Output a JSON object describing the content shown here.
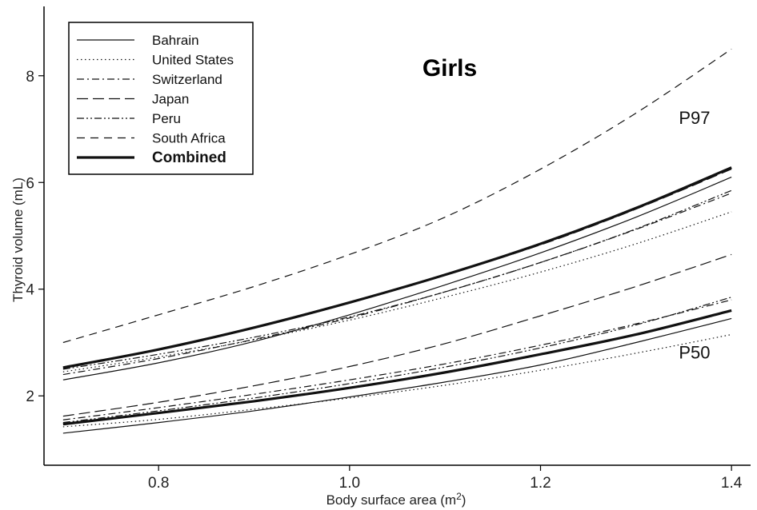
{
  "chart_data": {
    "type": "line",
    "title": "Girls",
    "xlabel": "Body surface area (m",
    "xlabel_sup": "2",
    "xlabel_suffix": ")",
    "ylabel": "Thyroid volume (mL)",
    "xlim": [
      0.68,
      1.42
    ],
    "ylim": [
      0.7,
      9.3
    ],
    "xticks": [
      0.8,
      1.0,
      1.2,
      1.4
    ],
    "xtick_labels": [
      "0.8",
      "1.0",
      "1.2",
      "1.4"
    ],
    "yticks": [
      2,
      4,
      6,
      8
    ],
    "ytick_labels": [
      "2",
      "4",
      "6",
      "8"
    ],
    "grid": false,
    "legend_position": "top-left",
    "annotations": [
      {
        "text": "P97",
        "x": 1.37,
        "y": 7.1
      },
      {
        "text": "P50",
        "x": 1.37,
        "y": 2.7
      }
    ],
    "x": [
      0.7,
      0.8,
      0.9,
      1.0,
      1.1,
      1.2,
      1.3,
      1.4
    ],
    "series": [
      {
        "name": "Bahrain",
        "dash": "solid",
        "width": 1.2,
        "p97": [
          2.3,
          2.62,
          3.02,
          3.52,
          4.08,
          4.68,
          5.35,
          6.1
        ],
        "p50": [
          1.3,
          1.5,
          1.72,
          1.98,
          2.26,
          2.58,
          3.0,
          3.45
        ]
      },
      {
        "name": "United States",
        "dash": "dotted",
        "width": 1.2,
        "p97": [
          2.45,
          2.73,
          3.05,
          3.42,
          3.85,
          4.32,
          4.85,
          5.45
        ],
        "p50": [
          1.42,
          1.56,
          1.75,
          1.96,
          2.2,
          2.48,
          2.8,
          3.15
        ]
      },
      {
        "name": "Switzerland",
        "dash": "dashdot",
        "width": 1.2,
        "p97": [
          2.4,
          2.7,
          3.06,
          3.46,
          3.95,
          4.5,
          5.12,
          5.8
        ],
        "p50": [
          1.55,
          1.78,
          2.03,
          2.3,
          2.6,
          2.95,
          3.35,
          3.8
        ]
      },
      {
        "name": "Japan",
        "dash": "longdash",
        "width": 1.2,
        "p97": [
          2.52,
          2.87,
          3.28,
          3.75,
          4.27,
          4.83,
          5.5,
          6.25
        ],
        "p50": [
          1.62,
          1.88,
          2.19,
          2.55,
          2.98,
          3.5,
          4.05,
          4.65
        ]
      },
      {
        "name": "Peru",
        "dash": "dashdotdot",
        "width": 1.2,
        "p97": [
          2.5,
          2.78,
          3.1,
          3.48,
          3.95,
          4.5,
          5.13,
          5.85
        ],
        "p50": [
          1.5,
          1.72,
          1.96,
          2.23,
          2.54,
          2.9,
          3.33,
          3.85
        ]
      },
      {
        "name": "South Africa",
        "dash": "dashed",
        "width": 1.2,
        "p97": [
          3.0,
          3.52,
          4.05,
          4.65,
          5.35,
          6.25,
          7.3,
          8.5
        ],
        "p50": null
      },
      {
        "name": "Combined",
        "dash": "solid",
        "width": 3.2,
        "p97": [
          2.53,
          2.87,
          3.28,
          3.75,
          4.27,
          4.85,
          5.52,
          6.28
        ],
        "p50": [
          1.47,
          1.68,
          1.9,
          2.15,
          2.44,
          2.78,
          3.15,
          3.6
        ]
      }
    ]
  }
}
